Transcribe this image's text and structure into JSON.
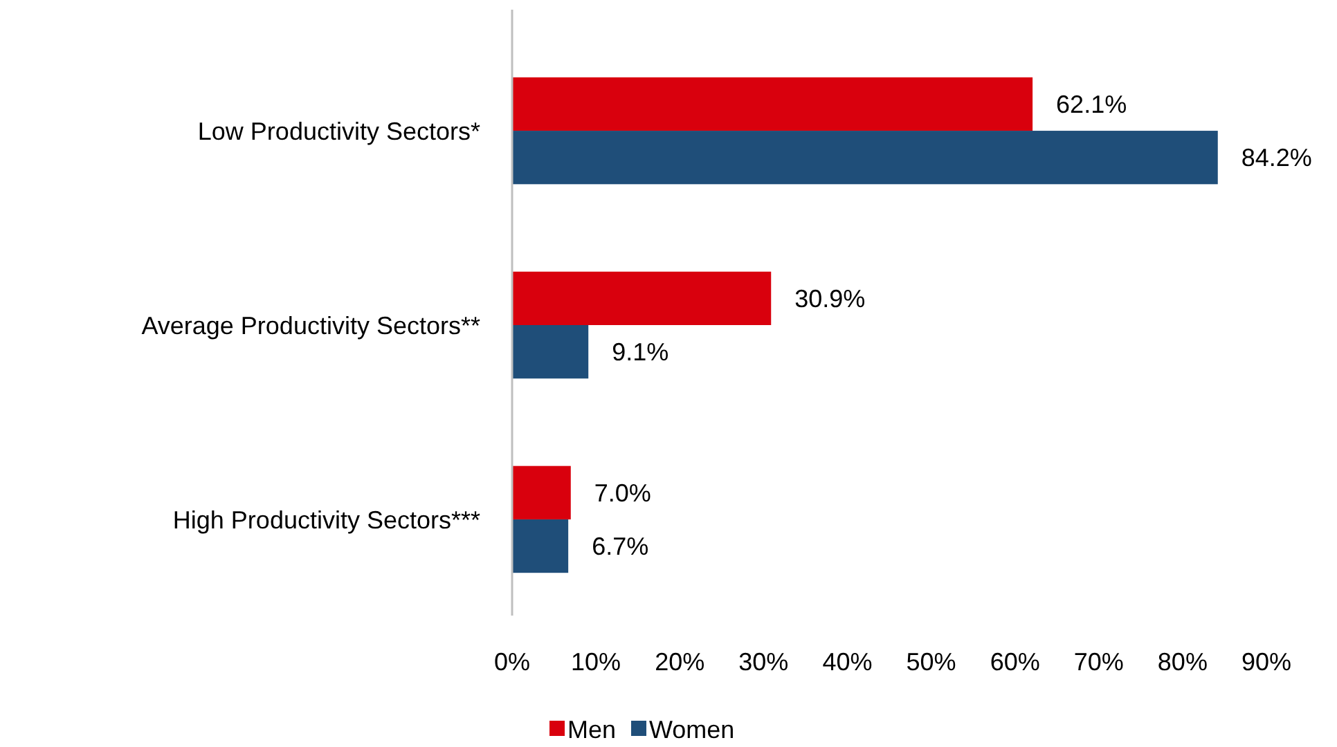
{
  "chart_data": {
    "type": "bar",
    "orientation": "horizontal",
    "categories": [
      "Low Productivity Sectors*",
      "Average Productivity Sectors**",
      "High Productivity Sectors***"
    ],
    "series": [
      {
        "name": "Men",
        "color": "#d9000d",
        "values": [
          62.1,
          30.9,
          7.0
        ],
        "value_labels": [
          "62.1%",
          "30.9%",
          "7.0%"
        ]
      },
      {
        "name": "Women",
        "color": "#1f4e79",
        "values": [
          84.2,
          9.1,
          6.7
        ],
        "value_labels": [
          "84.2%",
          "9.1%",
          "6.7%"
        ]
      }
    ],
    "xlim": [
      0,
      90
    ],
    "xticks": [
      {
        "value": 0,
        "label": "0%"
      },
      {
        "value": 10,
        "label": "10%"
      },
      {
        "value": 20,
        "label": "20%"
      },
      {
        "value": 30,
        "label": "30%"
      },
      {
        "value": 40,
        "label": "40%"
      },
      {
        "value": 50,
        "label": "50%"
      },
      {
        "value": 60,
        "label": "60%"
      },
      {
        "value": 70,
        "label": "70%"
      },
      {
        "value": 80,
        "label": "80%"
      },
      {
        "value": 90,
        "label": "90%"
      }
    ],
    "grid": false,
    "legend": "bottom"
  }
}
